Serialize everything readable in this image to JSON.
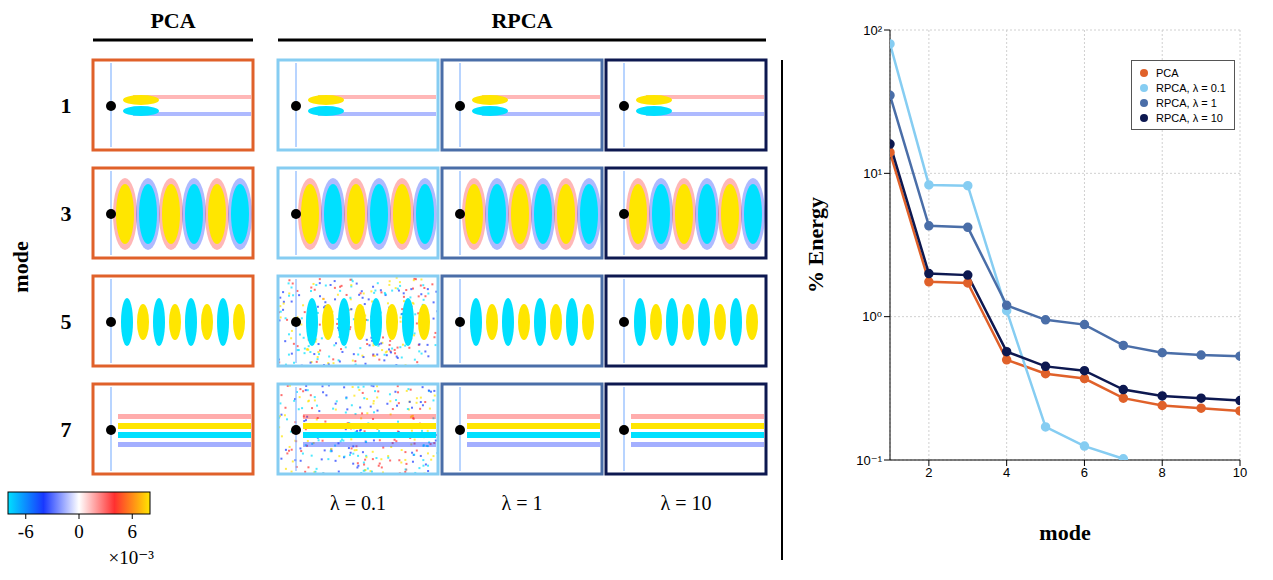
{
  "chart_data": {
    "type": "line",
    "x_label": "mode",
    "y_label": "% Energy",
    "x": [
      1,
      2,
      3,
      4,
      5,
      6,
      7,
      8,
      9,
      10
    ],
    "xlim": [
      1,
      10
    ],
    "xticks": [
      2,
      4,
      6,
      8,
      10
    ],
    "ylim": [
      0.1,
      100
    ],
    "yticks": [
      {
        "value": 0.1,
        "label": "10⁻¹"
      },
      {
        "value": 1,
        "label": "10⁰"
      },
      {
        "value": 10,
        "label": "10¹"
      },
      {
        "value": 100,
        "label": "10²"
      }
    ],
    "log": "y",
    "grid": true,
    "legend": "upper right",
    "marker": "circle",
    "series": [
      {
        "name": "PCA",
        "color": "#e0612a",
        "values": [
          14,
          1.75,
          1.72,
          0.5,
          0.4,
          0.37,
          0.27,
          0.24,
          0.23,
          0.22
        ]
      },
      {
        "name": "RPCA, λ = 0.1",
        "color": "#86cdf2",
        "values": [
          80,
          8.3,
          8.2,
          1.1,
          0.17,
          0.125,
          0.102,
          null,
          null,
          null
        ]
      },
      {
        "name": "RPCA, λ = 1",
        "color": "#4a6ea8",
        "values": [
          35,
          4.3,
          4.2,
          1.2,
          0.95,
          0.88,
          0.63,
          0.56,
          0.54,
          0.53
        ]
      },
      {
        "name": "RPCA, λ = 10",
        "color": "#0d1850",
        "values": [
          16,
          2.0,
          1.95,
          0.57,
          0.45,
          0.42,
          0.31,
          0.28,
          0.27,
          0.26
        ]
      }
    ]
  },
  "panels": {
    "column_heads": [
      {
        "label": "PCA",
        "columns": 1
      },
      {
        "label": "RPCA",
        "columns": 3
      }
    ],
    "row_title": "mode",
    "rows": [
      "1",
      "3",
      "5",
      "7"
    ],
    "column_labels": [
      null,
      "λ = 0.1",
      "λ = 1",
      "λ = 10"
    ],
    "colorbar": {
      "range": [
        -8,
        8
      ],
      "ticks": [
        -6,
        0,
        6
      ],
      "label": "×10⁻³"
    }
  }
}
